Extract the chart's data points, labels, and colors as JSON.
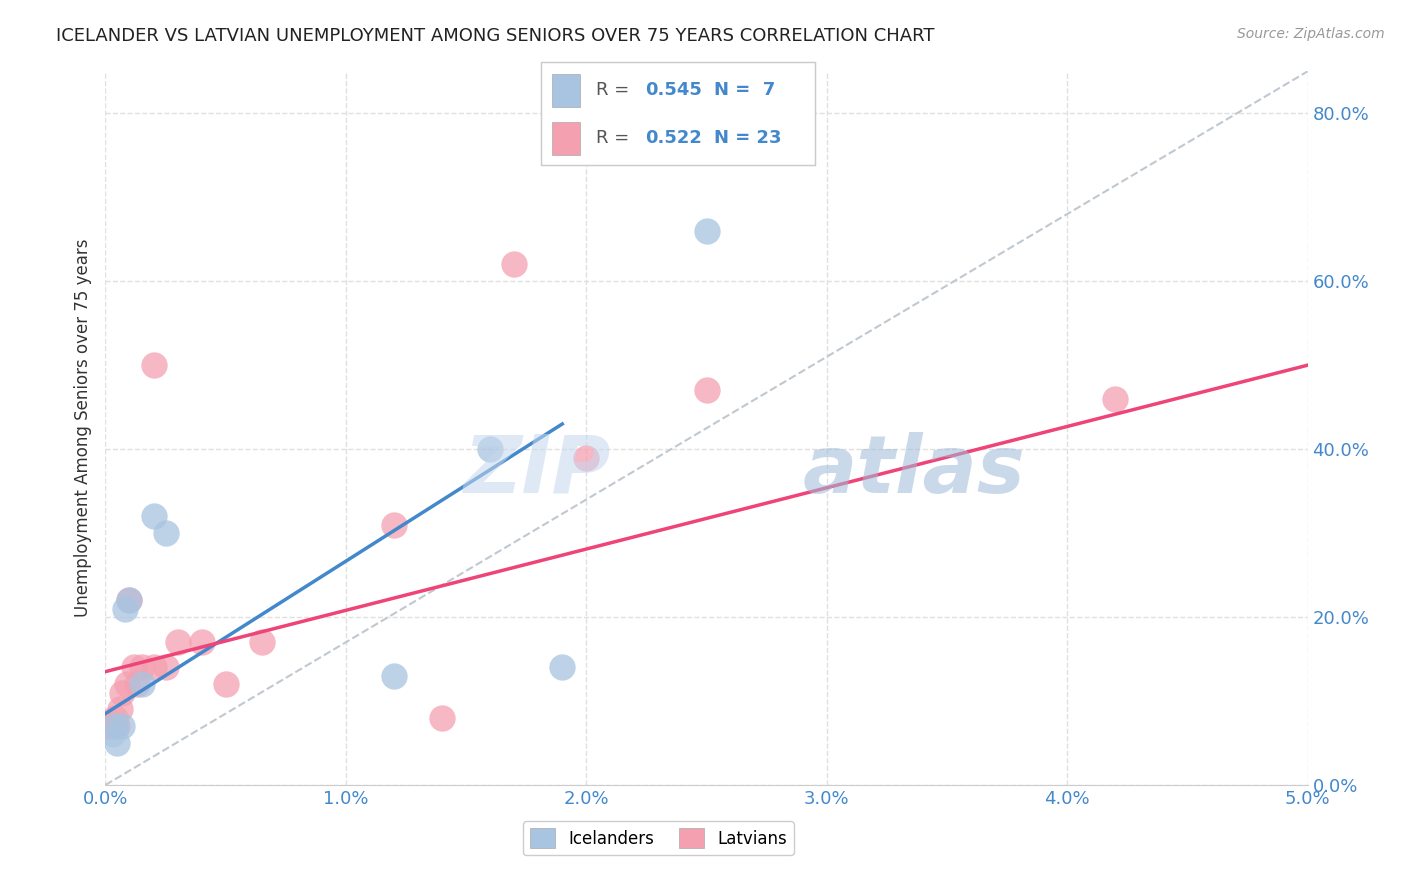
{
  "title": "ICELANDER VS LATVIAN UNEMPLOYMENT AMONG SENIORS OVER 75 YEARS CORRELATION CHART",
  "source": "Source: ZipAtlas.com",
  "ylabel": "Unemployment Among Seniors over 75 years",
  "xlim": [
    0.0,
    0.05
  ],
  "ylim": [
    0.0,
    0.85
  ],
  "xticks": [
    0.0,
    0.01,
    0.02,
    0.03,
    0.04,
    0.05
  ],
  "xtick_labels": [
    "0.0%",
    "1.0%",
    "2.0%",
    "3.0%",
    "4.0%",
    "5.0%"
  ],
  "ytick_labels_right": [
    "0.0%",
    "20.0%",
    "40.0%",
    "60.0%",
    "80.0%"
  ],
  "yticks": [
    0.0,
    0.2,
    0.4,
    0.6,
    0.8
  ],
  "icelander_x": [
    0.0003,
    0.0004,
    0.0005,
    0.0007,
    0.0008,
    0.001,
    0.0015,
    0.002,
    0.0025,
    0.012,
    0.016,
    0.019,
    0.025
  ],
  "icelander_y": [
    0.06,
    0.07,
    0.05,
    0.07,
    0.21,
    0.22,
    0.12,
    0.32,
    0.3,
    0.13,
    0.4,
    0.14,
    0.66
  ],
  "icelander_sizes": [
    300,
    60,
    60,
    60,
    60,
    60,
    60,
    60,
    60,
    60,
    60,
    60,
    60
  ],
  "latvian_x": [
    0.0002,
    0.0004,
    0.0005,
    0.0006,
    0.0007,
    0.0009,
    0.001,
    0.0012,
    0.0013,
    0.0015,
    0.002,
    0.002,
    0.0025,
    0.003,
    0.004,
    0.005,
    0.0065,
    0.012,
    0.014,
    0.017,
    0.02,
    0.025,
    0.042
  ],
  "latvian_y": [
    0.07,
    0.08,
    0.07,
    0.09,
    0.11,
    0.12,
    0.22,
    0.14,
    0.12,
    0.14,
    0.14,
    0.5,
    0.14,
    0.17,
    0.17,
    0.12,
    0.17,
    0.31,
    0.08,
    0.62,
    0.39,
    0.47,
    0.46
  ],
  "latvian_sizes_pt": [
    60,
    60,
    60,
    60,
    60,
    60,
    60,
    60,
    60,
    60,
    60,
    60,
    60,
    60,
    60,
    60,
    60,
    60,
    60,
    60,
    60,
    60,
    60
  ],
  "scatter_ice_color": "#a8c4e0",
  "scatter_lat_color": "#f4a0b0",
  "line_ice_color": "#4488cc",
  "line_lat_color": "#ee4477",
  "diag_line_color": "#c0c8d0",
  "watermark_zip": "ZIP",
  "watermark_atlas": "atlas",
  "background_color": "#ffffff",
  "grid_color": "#e0e0e0",
  "ice_line_x0": 0.0,
  "ice_line_y0": 0.085,
  "ice_line_x1": 0.019,
  "ice_line_y1": 0.43,
  "lat_line_x0": 0.0,
  "lat_line_y0": 0.135,
  "lat_line_x1": 0.05,
  "lat_line_y1": 0.5
}
